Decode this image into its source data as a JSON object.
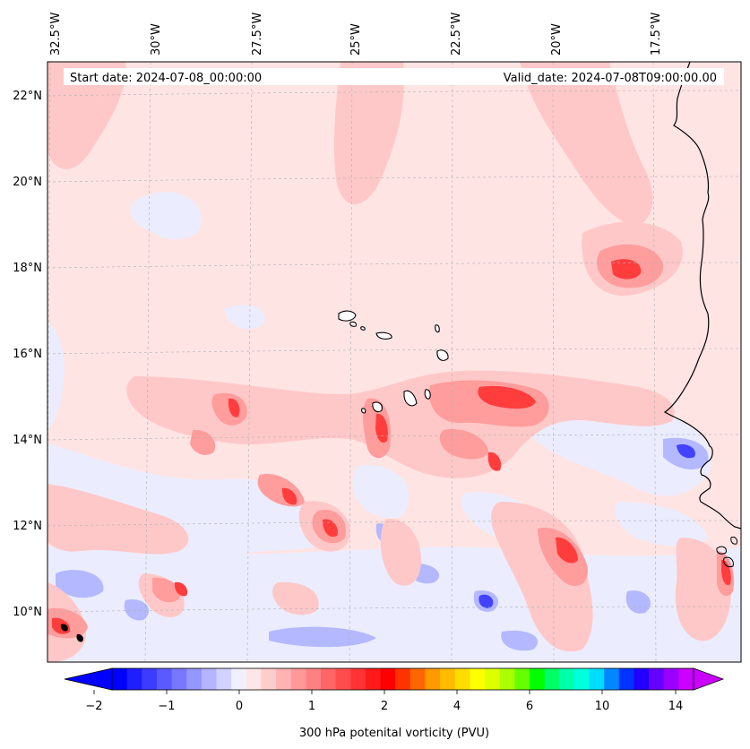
{
  "header": {
    "start_date": "Start date: 2024-07-08_00:00:00",
    "valid_date": "Valid_date: 2024-07-08T09:00:00.00"
  },
  "map": {
    "lon_ticks": [
      "32.5°W",
      "30°W",
      "27.5°W",
      "25°W",
      "22.5°W",
      "20°W",
      "17.5°W"
    ],
    "lat_ticks": [
      "22°N",
      "20°N",
      "18°N",
      "16°N",
      "14°N",
      "12°N",
      "10°N"
    ],
    "lon_values": [
      -32.5,
      -30,
      -27.5,
      -25,
      -22.5,
      -20,
      -17.5
    ],
    "lat_values": [
      22,
      20,
      18,
      16,
      14,
      12,
      10
    ],
    "extent": {
      "lon_min": -32.5,
      "lon_max": -15.0,
      "lat_min": 8.9,
      "lat_max": 22.75
    },
    "gridlines": true,
    "field": "300 hPa potential vorticity",
    "colors": {
      "coast": "#000000",
      "pale_pink": "#ffe3e3",
      "light_pink": "#ffc4c4",
      "mid_pink": "#ffa0a0",
      "red": "#ff3838",
      "pale_blue": "#e9ebff",
      "light_blue": "#aeb2ff",
      "blue": "#3d3dff"
    }
  },
  "colorbar": {
    "label": "300 hPa potenital vorticity (PVU)",
    "tick_labels": [
      "−2",
      "−1",
      "0",
      "1",
      "2",
      "4",
      "6",
      "10",
      "14"
    ],
    "tick_values": [
      -2,
      -1,
      0,
      1,
      2,
      4,
      6,
      10,
      14
    ],
    "colors": [
      "#0000ff",
      "#1e1eff",
      "#3c3cff",
      "#5a5aff",
      "#7878ff",
      "#9696ff",
      "#b4b4ff",
      "#d2d2ff",
      "#f0f0ff",
      "#ffe6e6",
      "#ffcccc",
      "#ffb3b3",
      "#ff9999",
      "#ff8080",
      "#ff6666",
      "#ff4d4d",
      "#ff3333",
      "#ff1a1a",
      "#ff0000",
      "#ff3300",
      "#ff6600",
      "#ff9900",
      "#ffbb00",
      "#ffdd00",
      "#ffff00",
      "#ddff00",
      "#aaff00",
      "#66ff00",
      "#00ff00",
      "#00ff66",
      "#00ffaa",
      "#00ffdd",
      "#00ddff",
      "#0088ff",
      "#0033ff",
      "#2200ff",
      "#6600ff",
      "#9900ff",
      "#cc00ff"
    ],
    "extend_low_color": "#0000ff",
    "extend_high_color": "#cc00ff"
  }
}
